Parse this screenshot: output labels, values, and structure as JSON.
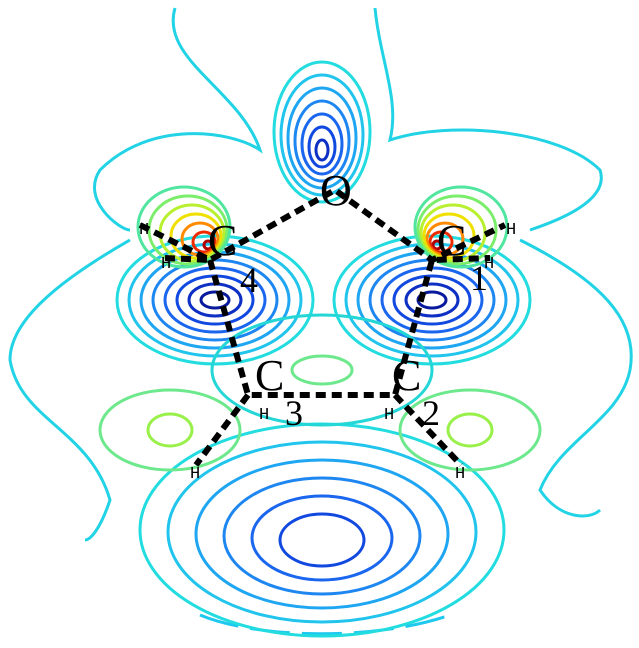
{
  "atoms": [
    {
      "symbol": "O"
    },
    {
      "symbol": "C",
      "index": "1"
    },
    {
      "symbol": "C",
      "index": "2"
    },
    {
      "symbol": "C",
      "index": "3"
    },
    {
      "symbol": "C",
      "index": "4"
    }
  ],
  "hydrogens": [
    "H",
    "H",
    "H",
    "H",
    "H",
    "H",
    "H",
    "H"
  ]
}
